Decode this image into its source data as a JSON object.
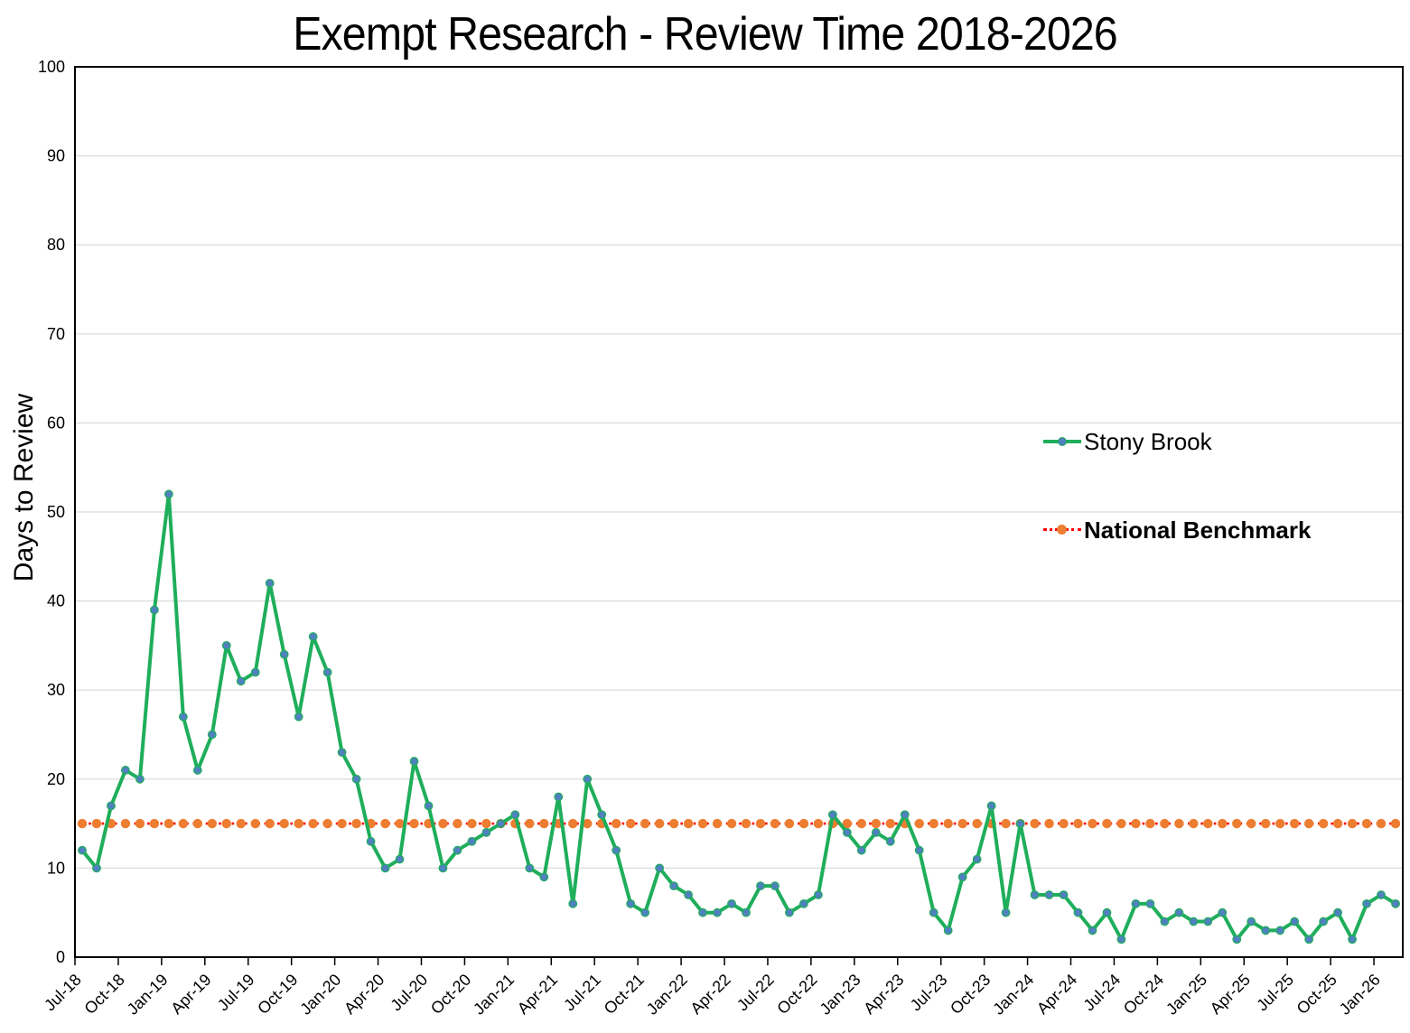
{
  "chart_data": {
    "type": "line",
    "title": "Exempt Research - Review Time 2018-2026",
    "ylabel": "Days to Review",
    "ylim": [
      0,
      100
    ],
    "ytick_step": 10,
    "y_tick_labels": [
      0,
      10,
      20,
      30,
      40,
      50,
      60,
      70,
      80,
      90,
      100
    ],
    "grid": "horizontal",
    "legend_position": "right-center",
    "x": [
      "Jul-18",
      "Aug-18",
      "Sep-18",
      "Oct-18",
      "Nov-18",
      "Dec-18",
      "Jan-19",
      "Feb-19",
      "Mar-19",
      "Apr-19",
      "May-19",
      "Jun-19",
      "Jul-19",
      "Aug-19",
      "Sep-19",
      "Oct-19",
      "Nov-19",
      "Dec-19",
      "Jan-20",
      "Feb-20",
      "Mar-20",
      "Apr-20",
      "May-20",
      "Jun-20",
      "Jul-20",
      "Aug-20",
      "Sep-20",
      "Oct-20",
      "Nov-20",
      "Dec-20",
      "Jan-21",
      "Feb-21",
      "Mar-21",
      "Apr-21",
      "May-21",
      "Jun-21",
      "Jul-21",
      "Aug-21",
      "Sep-21",
      "Oct-21",
      "Nov-21",
      "Dec-21",
      "Jan-22",
      "Feb-22",
      "Mar-22",
      "Apr-22",
      "May-22",
      "Jun-22",
      "Jul-22",
      "Aug-22",
      "Sep-22",
      "Oct-22",
      "Nov-22",
      "Dec-22",
      "Jan-23",
      "Feb-23",
      "Mar-23",
      "Apr-23",
      "May-23",
      "Jun-23",
      "Jul-23",
      "Aug-23",
      "Sep-23",
      "Oct-23",
      "Nov-23",
      "Dec-23",
      "Jan-24",
      "Feb-24",
      "Mar-24",
      "Apr-24",
      "May-24",
      "Jun-24",
      "Jul-24",
      "Aug-24",
      "Sep-24",
      "Oct-24",
      "Nov-24",
      "Dec-24",
      "Jan-25",
      "Feb-25",
      "Mar-25",
      "Apr-25",
      "May-25",
      "Jun-25",
      "Jul-25",
      "Aug-25",
      "Sep-25",
      "Oct-25",
      "Nov-25",
      "Dec-25",
      "Jan-26",
      "Feb-26"
    ],
    "x_tick_labels": [
      "Jul-18",
      "Oct-18",
      "Jan-19",
      "Apr-19",
      "Jul-19",
      "Oct-19",
      "Jan-20",
      "Apr-20",
      "Jul-20",
      "Oct-20",
      "Jan-21",
      "Apr-21",
      "Jul-21",
      "Oct-21",
      "Jan-22",
      "Apr-22",
      "Jul-22",
      "Oct-22",
      "Jan-23",
      "Apr-23",
      "Jul-23",
      "Oct-23",
      "Jan-24",
      "Apr-24",
      "Jul-24",
      "Oct-24",
      "Jan-25",
      "Apr-25",
      "Jul-25",
      "Oct-25",
      "Jan-26"
    ],
    "series": [
      {
        "name": "Stony Brook",
        "values": [
          12,
          10,
          17,
          21,
          20,
          39,
          52,
          27,
          21,
          25,
          35,
          31,
          32,
          42,
          34,
          27,
          36,
          32,
          23,
          20,
          13,
          10,
          11,
          22,
          17,
          10,
          12,
          13,
          14,
          15,
          16,
          10,
          9,
          18,
          6,
          20,
          16,
          12,
          6,
          5,
          10,
          8,
          7,
          5,
          5,
          6,
          5,
          8,
          8,
          5,
          6,
          7,
          16,
          14,
          12,
          14,
          13,
          16,
          12,
          5,
          3,
          9,
          11,
          17,
          5,
          15,
          7,
          7,
          7,
          5,
          3,
          5,
          2,
          6,
          6,
          4,
          5,
          4,
          4,
          5,
          2,
          4,
          3,
          3,
          4,
          2,
          4,
          5,
          2,
          6,
          7,
          6
        ]
      },
      {
        "name": "National Benchmark",
        "constant_value": 15
      }
    ]
  },
  "legend": {
    "stony_brook_label": "Stony Brook",
    "benchmark_label": "National Benchmark"
  },
  "colors": {
    "stony_brook_line": "#1fae5b",
    "stony_brook_marker": "#4e81bd",
    "benchmark_line": "#ff0000",
    "benchmark_marker": "#ed7d31",
    "gridline": "#d9d9d9",
    "axis": "#000000",
    "text": "#000000"
  }
}
